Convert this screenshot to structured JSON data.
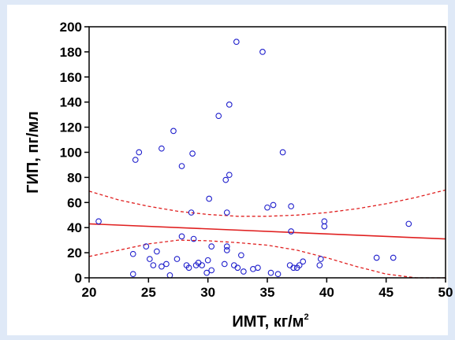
{
  "chart_data": {
    "type": "scatter",
    "xlabel": "ИМТ, кг/м",
    "xlabel_sup": "2",
    "ylabel": "ГИП, пг/мл",
    "xlim": [
      20,
      50
    ],
    "ylim": [
      0,
      200
    ],
    "x_ticks": [
      20,
      25,
      30,
      35,
      40,
      45,
      50
    ],
    "y_ticks": [
      0,
      20,
      40,
      60,
      80,
      100,
      120,
      140,
      160,
      180,
      200
    ],
    "grid": false,
    "colors": {
      "points": "#1f1fcc",
      "regression": "#e02020",
      "axes": "#000000",
      "background": "#dfe9f7"
    },
    "regression_line": {
      "x": [
        20,
        50
      ],
      "y": [
        43,
        31
      ]
    },
    "confidence_band": {
      "x": [
        20,
        22.5,
        25,
        27.5,
        30,
        32.5,
        35,
        37.5,
        40,
        42.5,
        45,
        47.5,
        50
      ],
      "upper": [
        69,
        62,
        57,
        53,
        50.5,
        49,
        49,
        50,
        52,
        55,
        59,
        64,
        70
      ],
      "lower": [
        17,
        22,
        27,
        30,
        29.5,
        28,
        26,
        22,
        16,
        9,
        3,
        -4,
        -10
      ]
    },
    "points": [
      [
        20.8,
        45
      ],
      [
        23.7,
        3
      ],
      [
        23.7,
        19
      ],
      [
        23.9,
        94
      ],
      [
        24.2,
        100
      ],
      [
        24.8,
        25
      ],
      [
        25.1,
        15
      ],
      [
        25.4,
        10
      ],
      [
        25.7,
        21
      ],
      [
        26.1,
        103
      ],
      [
        26.1,
        9
      ],
      [
        26.5,
        11
      ],
      [
        26.8,
        2
      ],
      [
        27.1,
        117
      ],
      [
        27.4,
        15
      ],
      [
        27.8,
        89
      ],
      [
        27.8,
        33
      ],
      [
        28.2,
        10
      ],
      [
        28.4,
        8
      ],
      [
        28.6,
        52
      ],
      [
        28.7,
        99
      ],
      [
        28.8,
        31
      ],
      [
        29.0,
        10
      ],
      [
        29.2,
        12
      ],
      [
        29.5,
        10
      ],
      [
        29.9,
        4
      ],
      [
        30.0,
        14
      ],
      [
        30.1,
        63
      ],
      [
        30.3,
        25
      ],
      [
        30.3,
        6
      ],
      [
        30.9,
        129
      ],
      [
        31.4,
        11
      ],
      [
        31.5,
        78
      ],
      [
        31.6,
        52
      ],
      [
        31.6,
        22
      ],
      [
        31.6,
        25
      ],
      [
        31.8,
        82
      ],
      [
        31.8,
        138
      ],
      [
        32.2,
        10
      ],
      [
        32.4,
        188
      ],
      [
        32.5,
        8
      ],
      [
        32.8,
        18
      ],
      [
        33.0,
        5
      ],
      [
        33.8,
        7
      ],
      [
        34.2,
        8
      ],
      [
        34.6,
        180
      ],
      [
        35.0,
        56
      ],
      [
        35.3,
        4
      ],
      [
        35.5,
        58
      ],
      [
        35.9,
        3
      ],
      [
        36.3,
        100
      ],
      [
        36.9,
        10
      ],
      [
        37.0,
        57
      ],
      [
        37.0,
        37
      ],
      [
        37.2,
        8
      ],
      [
        37.5,
        8
      ],
      [
        37.7,
        10
      ],
      [
        38.0,
        13
      ],
      [
        39.4,
        10
      ],
      [
        39.5,
        15
      ],
      [
        39.8,
        45
      ],
      [
        39.8,
        41
      ],
      [
        44.2,
        16
      ],
      [
        45.6,
        16
      ],
      [
        46.9,
        43
      ]
    ]
  }
}
